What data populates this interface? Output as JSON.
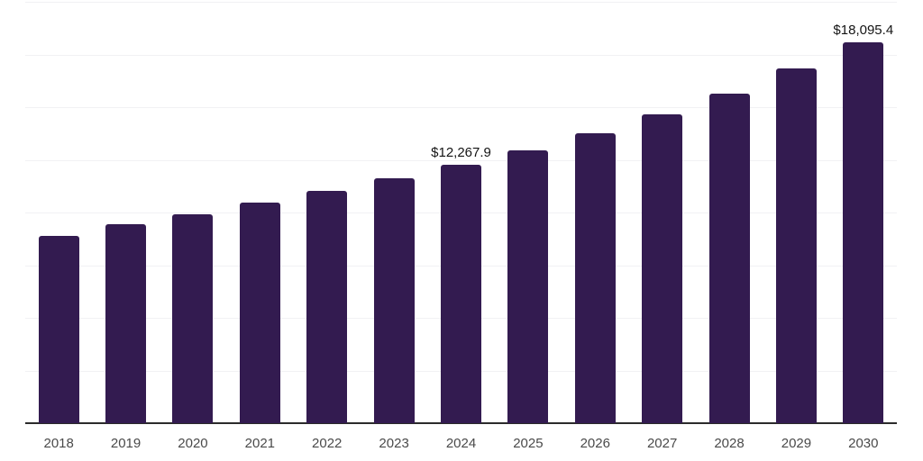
{
  "chart_data": {
    "type": "bar",
    "title": "",
    "xlabel": "",
    "ylabel": "",
    "categories": [
      "2018",
      "2019",
      "2020",
      "2021",
      "2022",
      "2023",
      "2024",
      "2025",
      "2026",
      "2027",
      "2028",
      "2029",
      "2030"
    ],
    "values": [
      8910,
      9460,
      9930,
      10490,
      11040,
      11640,
      12267.9,
      12960,
      13770,
      14670,
      15650,
      16840,
      18095.4
    ],
    "point_labels": [
      "",
      "",
      "",
      "",
      "",
      "",
      "$12,267.9",
      "",
      "",
      "",
      "",
      "",
      "$18,095.4"
    ],
    "ylim": [
      0,
      20000
    ],
    "grid_step": 2500,
    "grid": "horizontal",
    "legend": "none",
    "bar_color": "#331b50"
  },
  "colors": {
    "background": "#ffffff",
    "bar": "#331b50",
    "gridline": "#f1f1f4",
    "axis_line": "#2b2b2b",
    "tick_label": "#4a4a4a",
    "value_label": "#141414"
  }
}
